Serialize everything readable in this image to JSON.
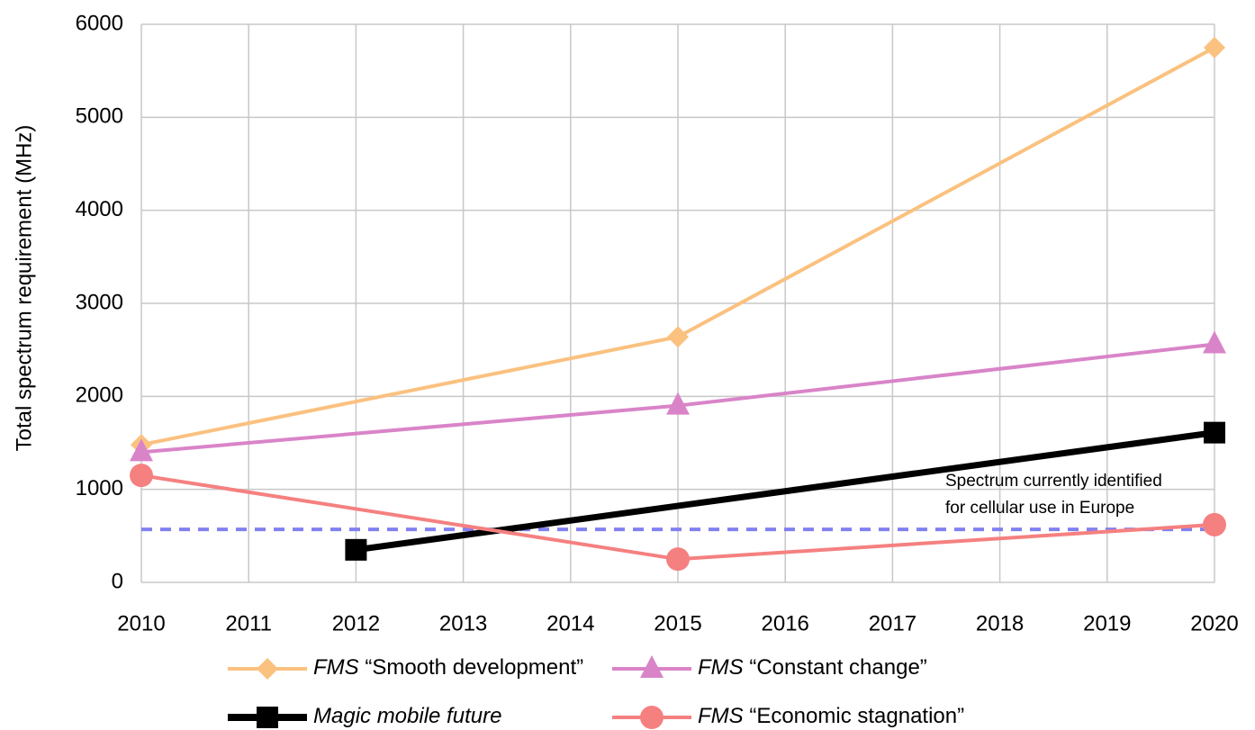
{
  "chart_data": {
    "type": "line",
    "y_label": "Total spectrum requirement (MHz)",
    "xlim": [
      2010,
      2020
    ],
    "xticks": [
      2010,
      2011,
      2012,
      2013,
      2014,
      2015,
      2016,
      2017,
      2018,
      2019,
      2020
    ],
    "ylim": [
      0,
      6000
    ],
    "yticks": [
      0,
      1000,
      2000,
      3000,
      4000,
      5000,
      6000
    ],
    "grid": true,
    "series": [
      {
        "name": "FMS “Smooth development”",
        "color": "#fac17f",
        "marker": "diamond",
        "x": [
          2010,
          2015,
          2020
        ],
        "values": [
          1480,
          2640,
          5750
        ]
      },
      {
        "name": "FMS “Constant change”",
        "color": "#d984c8",
        "marker": "triangle",
        "x": [
          2010,
          2015,
          2020
        ],
        "values": [
          1400,
          1900,
          2560
        ]
      },
      {
        "name": "Magic mobile future",
        "color": "#000000",
        "marker": "square",
        "x": [
          2012,
          2020
        ],
        "values": [
          350,
          1610
        ]
      },
      {
        "name": "FMS “Economic stagnation”",
        "color": "#f58080",
        "marker": "circle",
        "x": [
          2010,
          2015,
          2020
        ],
        "values": [
          1150,
          250,
          620
        ]
      }
    ],
    "reference_line": {
      "value": 570,
      "color": "#8080f0",
      "dashed": true
    },
    "annotation": [
      "Spectrum currently identified",
      "for cellular use in Europe"
    ]
  }
}
